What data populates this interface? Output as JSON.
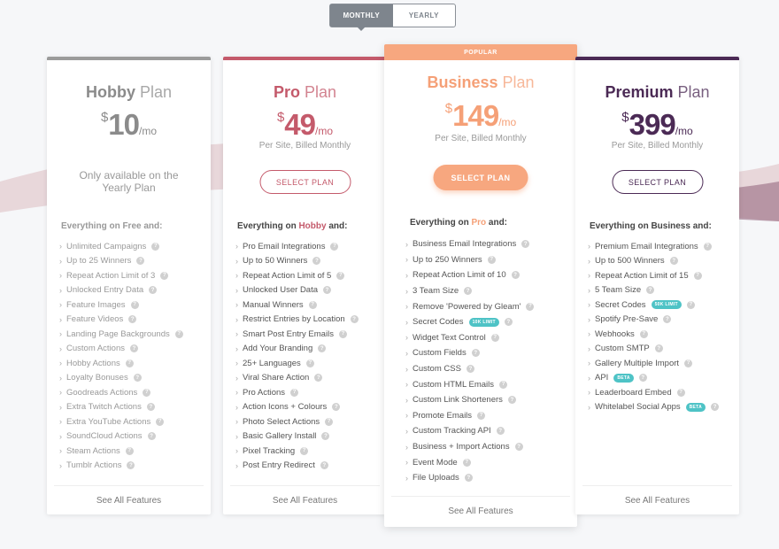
{
  "toggle": {
    "monthly": "MONTHLY",
    "yearly": "YEARLY"
  },
  "colors": {
    "hobby": "#9b9b9b",
    "pro": "#c45a6b",
    "business": "#f5a077",
    "premium": "#4b2a55",
    "tag": "#4ec3c6"
  },
  "icons": {
    "bullet": "chevron-right-icon",
    "info": "info-icon"
  },
  "plans": {
    "hobby": {
      "name": "Hobby",
      "suffix": "Plan",
      "currency": "$",
      "amount": "10",
      "per": "/mo",
      "note": "Only available on the Yearly Plan",
      "section": "Everything on Free and:",
      "features": [
        "Unlimited Campaigns",
        "Up to 25 Winners",
        "Repeat Action Limit of 3",
        "Unlocked Entry Data",
        "Feature Images",
        "Feature Videos",
        "Landing Page Backgrounds",
        "Custom Actions",
        "Hobby Actions",
        "Loyalty Bonuses",
        "Goodreads Actions",
        "Extra Twitch Actions",
        "Extra YouTube Actions",
        "SoundCloud Actions",
        "Steam Actions",
        "Tumblr Actions"
      ],
      "see_all": "See All Features"
    },
    "pro": {
      "name": "Pro",
      "suffix": "Plan",
      "currency": "$",
      "amount": "49",
      "per": "/mo",
      "billing": "Per Site, Billed Monthly",
      "select": "SELECT PLAN",
      "section_pre": "Everything on ",
      "section_hl": "Hobby",
      "section_post": " and:",
      "features": [
        "Pro Email Integrations",
        "Up to 50 Winners",
        "Repeat Action Limit of 5",
        "Unlocked User Data",
        "Manual Winners",
        "Restrict Entries by Location",
        "Smart Post Entry Emails",
        "Add Your Branding",
        "25+ Languages",
        "Viral Share Action",
        "Pro Actions",
        "Action Icons + Colours",
        "Photo Select Actions",
        "Basic Gallery Install",
        "Pixel Tracking",
        "Post Entry Redirect"
      ],
      "see_all": "See All Features"
    },
    "business": {
      "popular": "POPULAR",
      "name": "Business",
      "suffix": "Plan",
      "currency": "$",
      "amount": "149",
      "per": "/mo",
      "billing": "Per Site, Billed Monthly",
      "select": "SELECT PLAN",
      "section_pre": "Everything on ",
      "section_hl": "Pro",
      "section_post": " and:",
      "features": [
        "Business Email Integrations",
        "Up to 250 Winners",
        "Repeat Action Limit of 10",
        "3 Team Size",
        "Remove 'Powered by Gleam'",
        "Secret Codes",
        "Widget Text Control",
        "Custom Fields",
        "Custom CSS",
        "Custom HTML Emails",
        "Custom Link Shorteners",
        "Promote Emails",
        "Custom Tracking API",
        "Business + Import Actions",
        "Event Mode",
        "File Uploads"
      ],
      "tag_secret": "10K LIMIT",
      "see_all": "See All Features"
    },
    "premium": {
      "name": "Premium",
      "suffix": "Plan",
      "currency": "$",
      "amount": "399",
      "per": "/mo",
      "billing": "Per Site, Billed Monthly",
      "select": "SELECT PLAN",
      "section": "Everything on Business and:",
      "features": [
        "Premium Email Integrations",
        "Up to 500 Winners",
        "Repeat Action Limit of 15",
        "5 Team Size",
        "Secret Codes",
        "Spotify Pre-Save",
        "Webhooks",
        "Custom SMTP",
        "Gallery Multiple Import",
        "API",
        "Leaderboard Embed",
        "Whitelabel Social Apps"
      ],
      "tag_secret": "50K LIMIT",
      "tag_api": "BETA",
      "tag_whitelabel": "BETA",
      "see_all": "See All Features"
    }
  }
}
